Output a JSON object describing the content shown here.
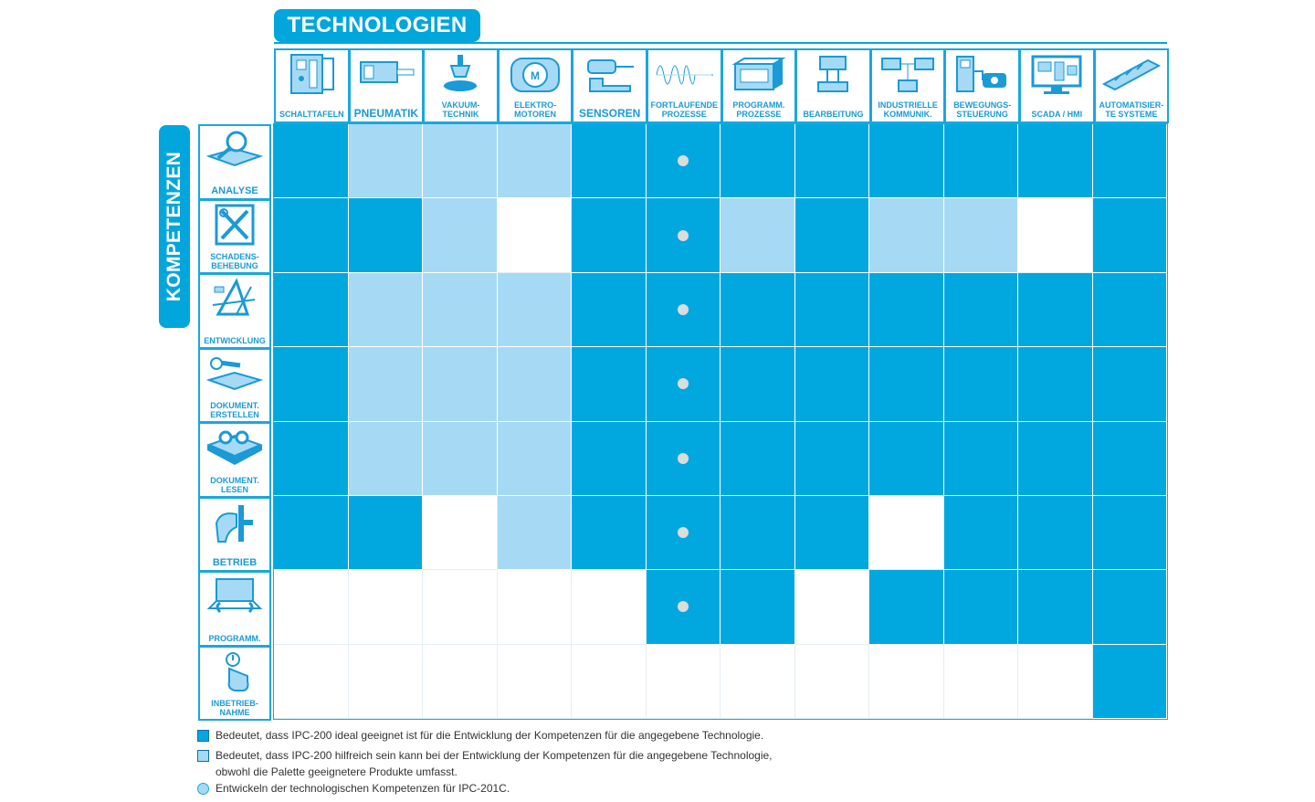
{
  "technologies_title": "TECHNOLOGIEN",
  "competencies_title": "KOMPETENZEN",
  "technologies": [
    {
      "label": "SCHALTTAFELN",
      "icon": "control-cabinet-icon"
    },
    {
      "label": "PNEUMATIK",
      "icon": "pneumatic-cylinder-icon"
    },
    {
      "label": "VAKUUM-\nTECHNIK",
      "icon": "vacuum-gripper-icon"
    },
    {
      "label": "ELEKTRO-\nMOTOREN",
      "icon": "electric-motor-icon"
    },
    {
      "label": "SENSOREN",
      "icon": "sensor-icon"
    },
    {
      "label": "FORTLAUFENDE\nPROZESSE",
      "icon": "waveform-icon"
    },
    {
      "label": "PROGRAMM.\nPROZESSE",
      "icon": "plc-icon"
    },
    {
      "label": "BEARBEITUNG",
      "icon": "machining-icon"
    },
    {
      "label": "INDUSTRIELLE\nKOMMUNIK.",
      "icon": "network-icon"
    },
    {
      "label": "BEWEGUNGS-\nSTEUERUNG",
      "icon": "motion-control-icon"
    },
    {
      "label": "SCADA / HMI",
      "icon": "monitor-icon"
    },
    {
      "label": "AUTOMATISIER-\nTE SYSTEME",
      "icon": "automated-system-icon"
    }
  ],
  "competencies": [
    {
      "label": "ANALYSE",
      "icon": "magnifier-book-icon"
    },
    {
      "label": "SCHADENS-\nBEHEBUNG",
      "icon": "wrench-screwdriver-icon"
    },
    {
      "label": "ENTWICKLUNG",
      "icon": "drafting-tools-icon"
    },
    {
      "label": "DOKUMENT.\nERSTELLEN",
      "icon": "writing-icon"
    },
    {
      "label": "DOKUMENT.\nLESEN",
      "icon": "glasses-book-icon"
    },
    {
      "label": "BETRIEB",
      "icon": "hand-lever-icon"
    },
    {
      "label": "PROGRAMM.",
      "icon": "laptop-icon"
    },
    {
      "label": "INBETRIEB-\nNAHME",
      "icon": "power-button-icon"
    }
  ],
  "matrix": [
    [
      2,
      1,
      1,
      1,
      2,
      2,
      2,
      2,
      2,
      2,
      2,
      2
    ],
    [
      2,
      2,
      1,
      0,
      2,
      2,
      1,
      2,
      1,
      1,
      0,
      2
    ],
    [
      2,
      1,
      1,
      1,
      2,
      2,
      2,
      2,
      2,
      2,
      2,
      2
    ],
    [
      2,
      1,
      1,
      1,
      2,
      2,
      2,
      2,
      2,
      2,
      2,
      2
    ],
    [
      2,
      1,
      1,
      1,
      2,
      2,
      2,
      2,
      2,
      2,
      2,
      2
    ],
    [
      2,
      2,
      0,
      1,
      2,
      2,
      2,
      2,
      0,
      2,
      2,
      2
    ],
    [
      0,
      0,
      0,
      0,
      0,
      2,
      2,
      0,
      2,
      2,
      2,
      2
    ],
    [
      0,
      0,
      0,
      0,
      0,
      0,
      0,
      0,
      0,
      0,
      0,
      2
    ]
  ],
  "dots_column": 5,
  "dots_rows": [
    0,
    1,
    2,
    3,
    4,
    5,
    6
  ],
  "legend": {
    "dark": "Bedeutet, dass IPC-200 ideal geeignet ist für die Entwicklung der Kompetenzen für die angegebene Technologie.",
    "light_line1": "Bedeutet, dass IPC-200 hilfreich sein kann bei der Entwicklung der Kompetenzen für die angegebene Technologie,",
    "light_line2": "obwohl die Palette geeignetere Produkte umfasst.",
    "circle": "Entwickeln der technologischen Kompetenzen für IPC-201C."
  },
  "colors": {
    "accent": "#00a6dc",
    "ideal": "#00a8df",
    "helpful": "#a6daf4",
    "dot": "#dcdcdc"
  }
}
